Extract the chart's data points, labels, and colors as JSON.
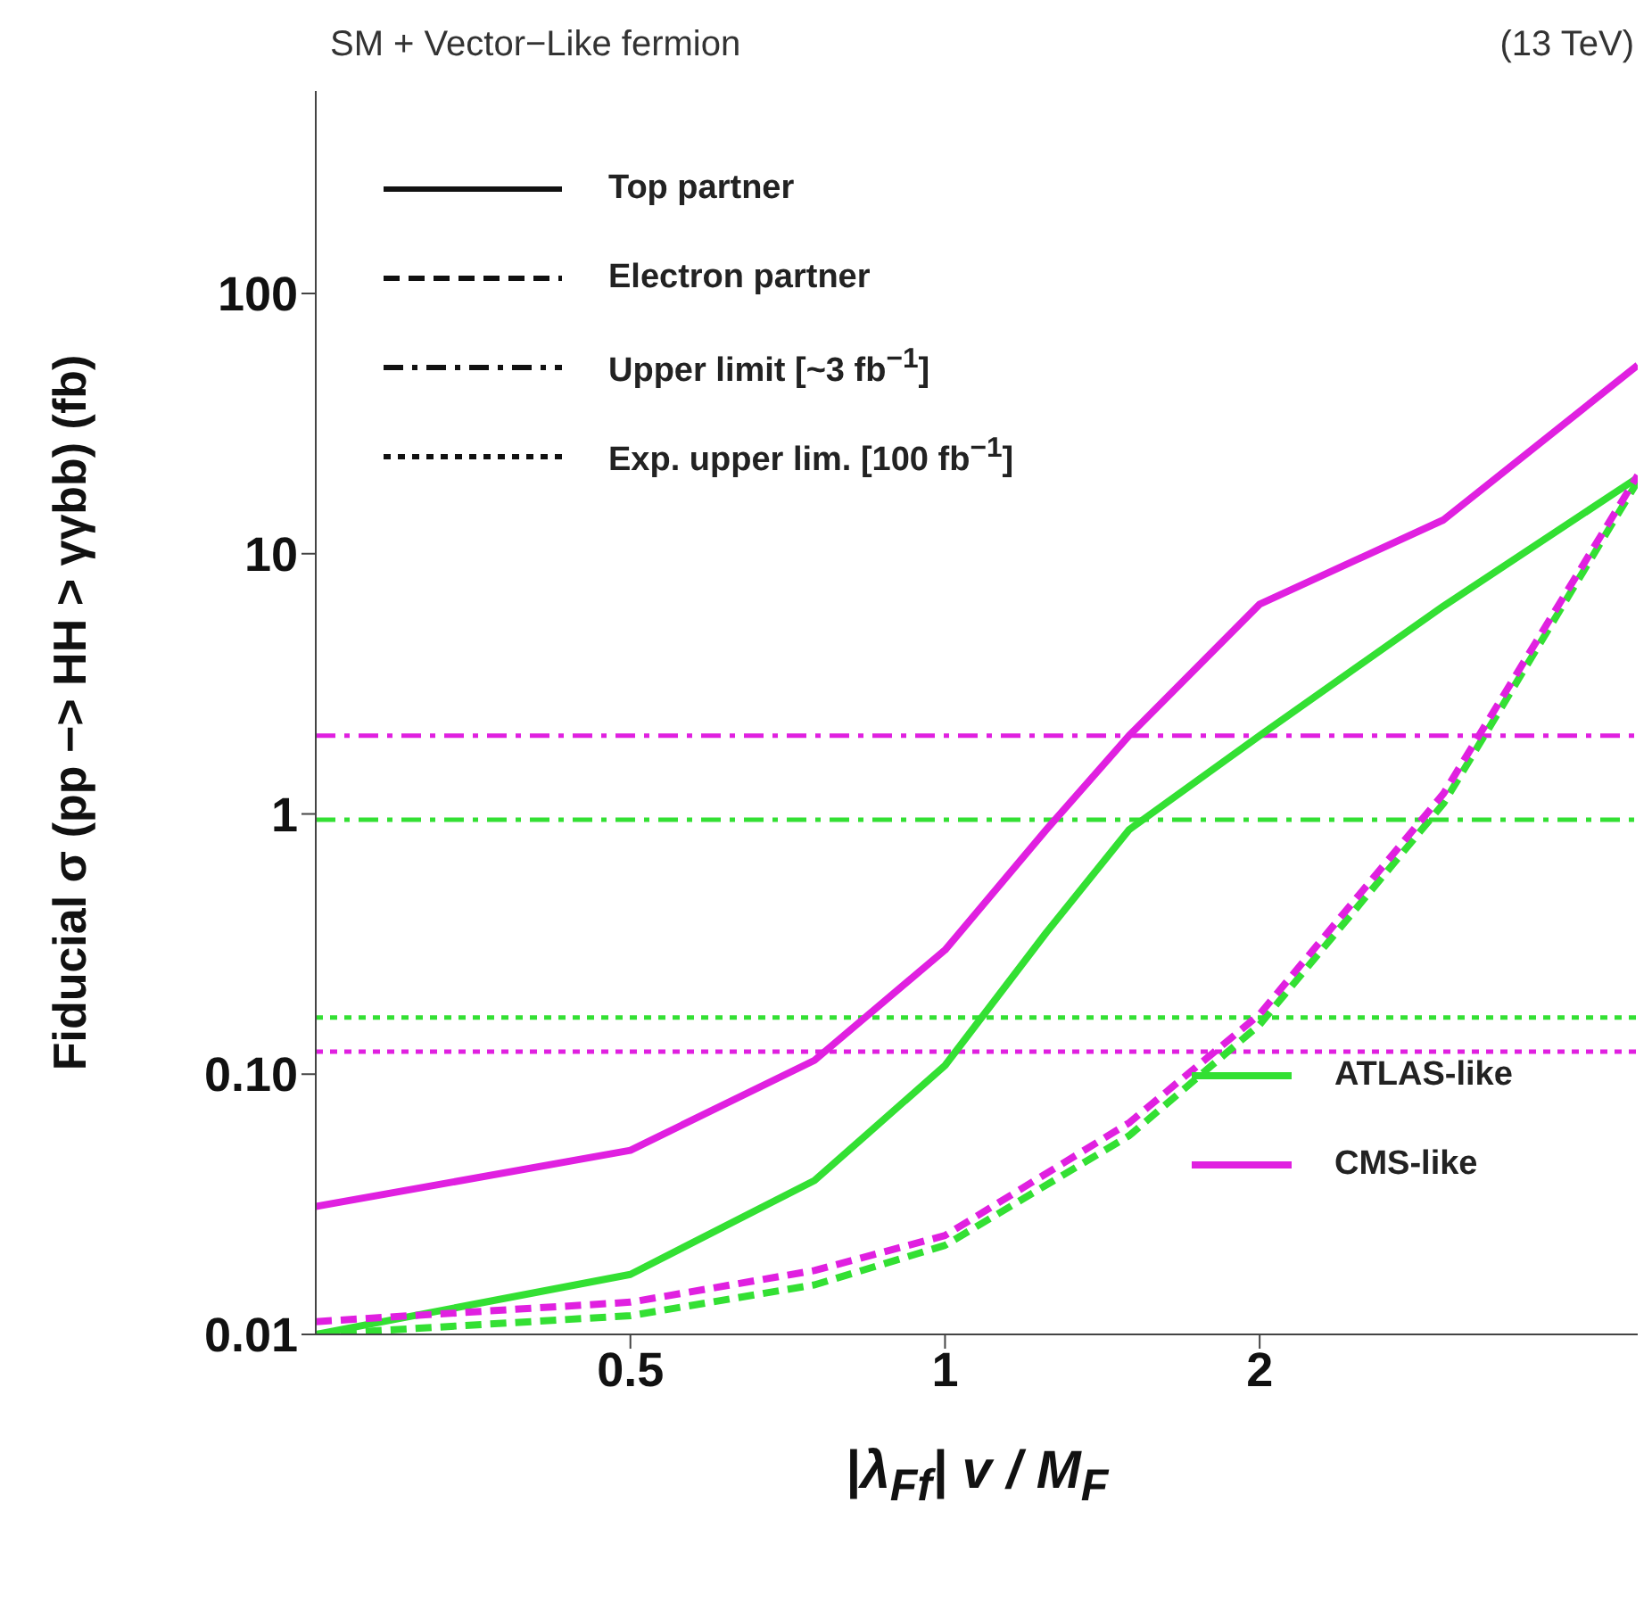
{
  "chart_data": {
    "type": "line",
    "title": "SM + Vector−Like fermion",
    "subtitle": "(13 TeV)",
    "xlabel": "|λ$_{Ff}$| v / M$_{F}$",
    "ylabel": "Fiducial σ (pp −> HH > γγbb) (fb)",
    "log": "xy",
    "xlim": [
      0.25,
      4.6
    ],
    "xticks": [
      0.5,
      1,
      2
    ],
    "ylim": [
      0.01,
      600
    ],
    "yticks": [
      0.01,
      {
        "value": 0.1,
        "label": "0.10"
      },
      1,
      10,
      100
    ],
    "grid": false,
    "legend": "bottom right",
    "marker": "none",
    "annotations": [
      "Top partner",
      "Electron partner",
      "Upper limit [~3 fb$^{−1}$]",
      "Exp. upper lim. [100 fb$^{−1}$]"
    ],
    "series": [
      {
        "name": "ATLAS-like",
        "color": "#33e033",
        "line_style": "solid",
        "x": [
          0.25,
          0.5,
          0.75,
          1,
          1.25,
          1.5,
          2,
          3,
          4.6
        ],
        "values": [
          0.01,
          0.017,
          0.039,
          0.108,
          0.35,
          0.87,
          2.0,
          6.3,
          19.6
        ]
      },
      {
        "name": "CMS-like",
        "color": "#e020e0",
        "line_style": "solid",
        "x": [
          0.25,
          0.5,
          0.75,
          1,
          1.25,
          1.5,
          2,
          3,
          4.6
        ],
        "values": [
          0.031,
          0.051,
          0.113,
          0.3,
          0.87,
          2.0,
          6.4,
          13.5,
          53
        ]
      },
      {
        "color": "#33e033",
        "line_style": "dashed",
        "x": [
          0.25,
          0.5,
          0.75,
          1,
          1.5,
          2,
          3,
          4.6
        ],
        "values": [
          0.01,
          0.0118,
          0.0155,
          0.022,
          0.058,
          0.155,
          1.1,
          19
        ]
      },
      {
        "color": "#e020e0",
        "line_style": "dashed",
        "x": [
          0.25,
          0.5,
          0.75,
          1,
          1.5,
          2,
          3,
          4.6
        ],
        "values": [
          0.0112,
          0.0133,
          0.0176,
          0.024,
          0.065,
          0.17,
          1.2,
          20
        ]
      }
    ],
    "ref_lines": [
      {
        "axis": "y",
        "value": 2.0,
        "color": "#e020e0",
        "line_style": "dashdot"
      },
      {
        "axis": "y",
        "value": 0.95,
        "color": "#33e033",
        "line_style": "dashdot"
      },
      {
        "axis": "y",
        "value": 0.165,
        "color": "#33e033",
        "line_style": "dotted"
      },
      {
        "axis": "y",
        "value": 0.122,
        "color": "#e020e0",
        "line_style": "dotted"
      }
    ]
  }
}
